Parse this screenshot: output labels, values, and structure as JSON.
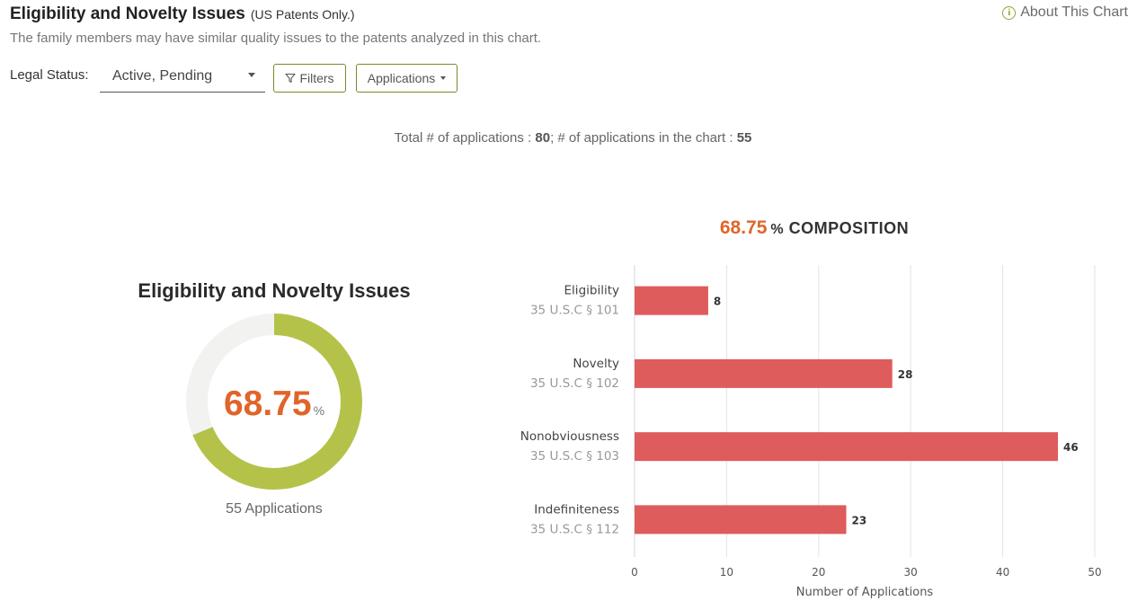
{
  "header": {
    "title": "Eligibility and Novelty Issues",
    "title_note": "(US Patents Only.)",
    "about_label": "About This Chart",
    "subtitle": "The family members may have similar quality issues to the patents analyzed in this chart."
  },
  "controls": {
    "legal_status_label": "Legal Status:",
    "legal_status_value": "Active, Pending",
    "filters_label": "Filters",
    "applications_label": "Applications"
  },
  "totals": {
    "prefix": "Total # of applications : ",
    "total": "80",
    "middle": "; # of applications in the chart : ",
    "in_chart": "55"
  },
  "donut": {
    "title": "Eligibility and Novelty Issues",
    "value": "68.75",
    "unit": "%",
    "fraction": 0.6875,
    "caption": "55 Applications",
    "fill_color": "#b5c249",
    "track_color": "#f2f3f1"
  },
  "composition": {
    "value": "68.75",
    "unit": "%",
    "label": "COMPOSITION"
  },
  "chart_data": {
    "type": "bar",
    "orientation": "horizontal",
    "categories": [
      "Eligibility",
      "Novelty",
      "Nonobviousness",
      "Indefiniteness"
    ],
    "sublabels": [
      "35 U.S.C § 101",
      "35 U.S.C § 102",
      "35 U.S.C § 103",
      "35 U.S.C § 112"
    ],
    "values": [
      8,
      28,
      46,
      23
    ],
    "xlabel": "Number of Applications",
    "xlim": [
      0,
      50
    ],
    "xticks": [
      0,
      10,
      20,
      30,
      40,
      50
    ],
    "grid": true,
    "bar_color": "#de5c5c"
  }
}
